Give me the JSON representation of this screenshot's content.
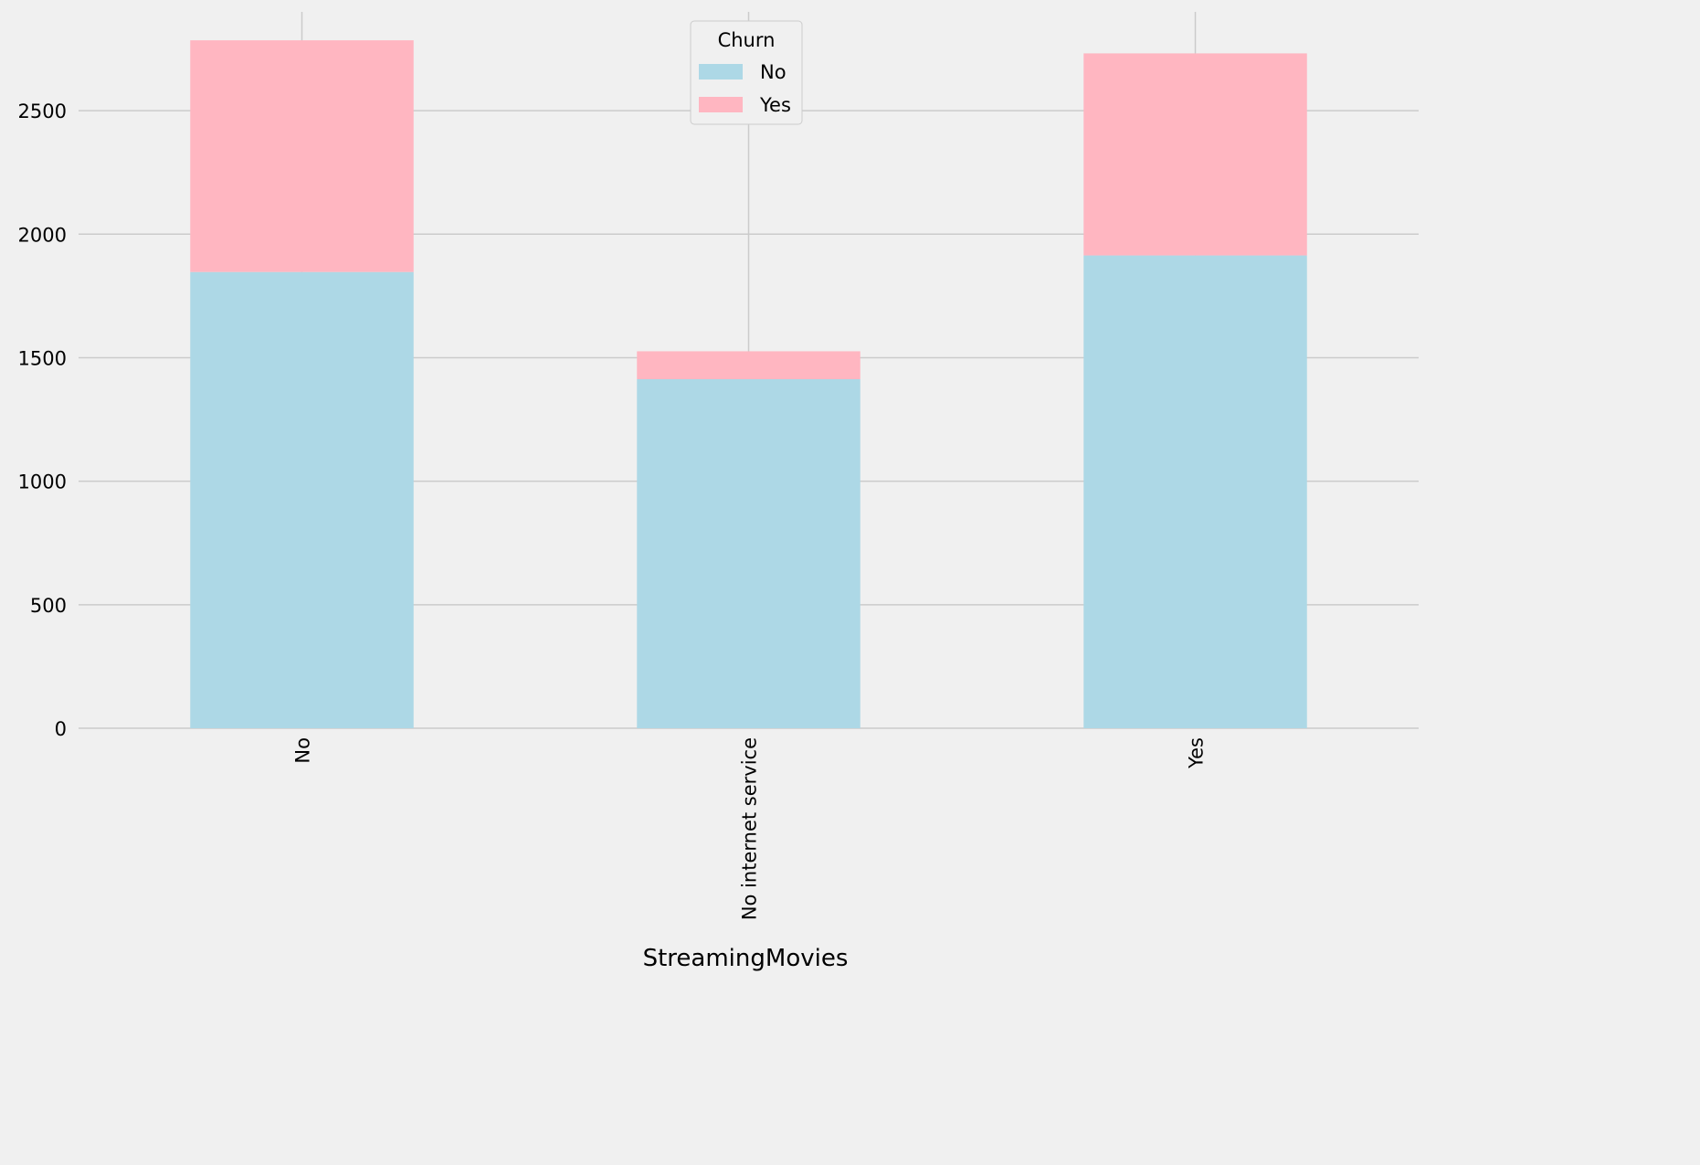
{
  "chart_data": {
    "type": "bar",
    "stacked": true,
    "title": "",
    "xlabel": "StreamingMovies",
    "ylabel": "",
    "categories": [
      "No",
      "No internet service",
      "Yes"
    ],
    "series": [
      {
        "name": "No",
        "values": [
          1847,
          1413,
          1914
        ],
        "color": "#add8e6"
      },
      {
        "name": "Yes",
        "values": [
          938,
          113,
          818
        ],
        "color": "#ffb6c1"
      }
    ],
    "ylim": [
      0,
      2900
    ],
    "yticks": [
      0,
      500,
      1000,
      1500,
      2000,
      2500
    ],
    "grid": true,
    "legend": {
      "title": "Churn",
      "position": "top-center"
    }
  }
}
